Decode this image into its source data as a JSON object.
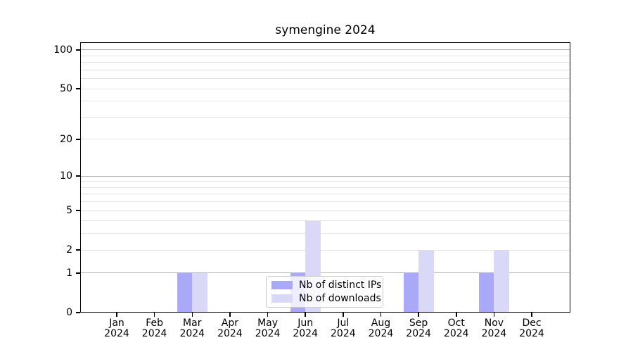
{
  "chart_data": {
    "type": "bar",
    "title": "symengine 2024",
    "categories": [
      "Jan",
      "Feb",
      "Mar",
      "Apr",
      "May",
      "Jun",
      "Jul",
      "Aug",
      "Sep",
      "Oct",
      "Nov",
      "Dec"
    ],
    "year": "2024",
    "series": [
      {
        "name": "Nb of distinct IPs",
        "color": "#a9a9f7",
        "values": [
          0,
          0,
          1,
          0,
          0,
          1,
          0,
          0,
          1,
          0,
          1,
          0
        ]
      },
      {
        "name": "Nb of downloads",
        "color": "#d9d9f7",
        "values": [
          0,
          0,
          1,
          0,
          0,
          4,
          0,
          0,
          2,
          0,
          2,
          0
        ]
      }
    ],
    "yscale": "log1p",
    "ylim": [
      0,
      114
    ],
    "yticks": [
      0,
      1,
      2,
      5,
      10,
      20,
      50,
      100
    ],
    "ytick_labels": [
      "0",
      "1",
      "2",
      "5",
      "10",
      "20",
      "50",
      "100"
    ],
    "gridlines_major": [
      1,
      10,
      100
    ],
    "gridlines_minor": [
      2,
      3,
      4,
      5,
      6,
      7,
      8,
      9,
      20,
      30,
      40,
      50,
      60,
      70,
      80,
      90
    ],
    "grid": true,
    "legend_position": "lower center inside plot"
  },
  "colors": {
    "background": "#ffffff",
    "axis": "#000000",
    "text": "#000000",
    "grid_major": "#b0b0b0",
    "grid_minor": "#e2e2e2",
    "legend_border": "#cccccc"
  }
}
